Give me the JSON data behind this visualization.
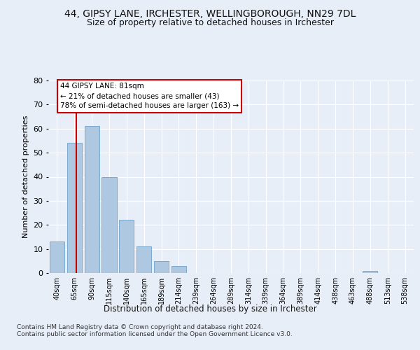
{
  "title1": "44, GIPSY LANE, IRCHESTER, WELLINGBOROUGH, NN29 7DL",
  "title2": "Size of property relative to detached houses in Irchester",
  "xlabel": "Distribution of detached houses by size in Irchester",
  "ylabel": "Number of detached properties",
  "categories": [
    "40sqm",
    "65sqm",
    "90sqm",
    "115sqm",
    "140sqm",
    "165sqm",
    "189sqm",
    "214sqm",
    "239sqm",
    "264sqm",
    "289sqm",
    "314sqm",
    "339sqm",
    "364sqm",
    "389sqm",
    "414sqm",
    "438sqm",
    "463sqm",
    "488sqm",
    "513sqm",
    "538sqm"
  ],
  "values": [
    13,
    54,
    61,
    40,
    22,
    11,
    5,
    3,
    0,
    0,
    0,
    0,
    0,
    0,
    0,
    0,
    0,
    0,
    1,
    0,
    0
  ],
  "bar_color": "#adc8e0",
  "bar_edge_color": "#7aaace",
  "vline_color": "#cc0000",
  "annotation_text": "44 GIPSY LANE: 81sqm\n← 21% of detached houses are smaller (43)\n78% of semi-detached houses are larger (163) →",
  "annotation_box_color": "#ffffff",
  "annotation_box_edge": "#cc0000",
  "footer_text": "Contains HM Land Registry data © Crown copyright and database right 2024.\nContains public sector information licensed under the Open Government Licence v3.0.",
  "ylim": [
    0,
    80
  ],
  "yticks": [
    0,
    10,
    20,
    30,
    40,
    50,
    60,
    70,
    80
  ],
  "bg_color": "#e8eef8",
  "plot_bg_color": "#e8eef8",
  "grid_color": "#ffffff",
  "title1_fontsize": 10,
  "title2_fontsize": 9
}
